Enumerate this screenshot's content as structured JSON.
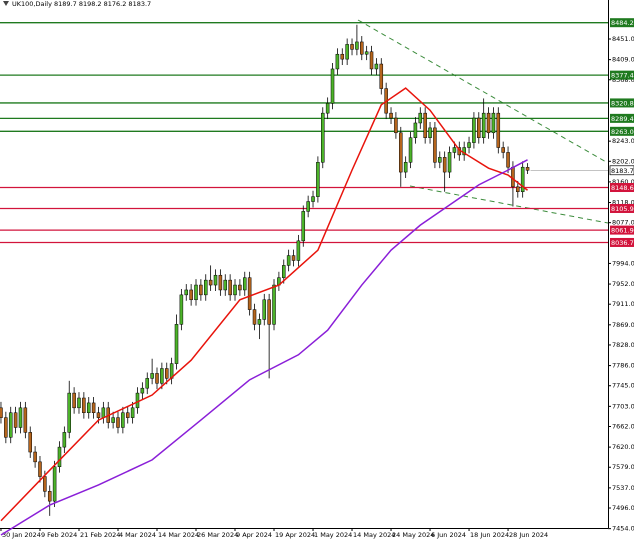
{
  "chart_data": {
    "type": "candlestick",
    "title": "UK100,Daily  8189.7 8198.2 8176.2 8183.7",
    "open": [
      7700,
      7680,
      7640,
      7690,
      7660,
      7700,
      7650,
      7610,
      7590,
      7560,
      7530,
      7510,
      7580,
      7620,
      7650,
      7730,
      7700,
      7720,
      7690,
      7710,
      7690,
      7680,
      7700,
      7670,
      7680,
      7660,
      7690,
      7680,
      7700,
      7730,
      7740,
      7760,
      7770,
      7750,
      7780,
      7760,
      7790,
      7870,
      7930,
      7940,
      7920,
      7950,
      7930,
      7960,
      7950,
      7970,
      7940,
      7960,
      7930,
      7950,
      7940,
      7965,
      7900,
      7870,
      7880,
      7920,
      7870,
      7950,
      7965,
      7990,
      8010,
      8000,
      8040,
      8100,
      8120,
      8130,
      8200,
      8300,
      8320,
      8390,
      8420,
      8410,
      8440,
      8430,
      8445,
      8420,
      8425,
      8390,
      8400,
      8350,
      8300,
      8290,
      8260,
      8180,
      8200,
      8250,
      8280,
      8300,
      8250,
      8270,
      8200,
      8210,
      8180,
      8220,
      8230,
      8215,
      8230,
      8240,
      8290,
      8250,
      8300,
      8260,
      8300,
      8230,
      8220,
      8190,
      8150,
      8140,
      8189.7
    ],
    "high": [
      7712,
      7692,
      7702,
      7702,
      7712,
      7712,
      7662,
      7622,
      7602,
      7572,
      7542,
      7592,
      7632,
      7662,
      7755,
      7742,
      7732,
      7732,
      7722,
      7722,
      7702,
      7712,
      7712,
      7692,
      7692,
      7702,
      7702,
      7712,
      7742,
      7752,
      7772,
      7800,
      7782,
      7792,
      7792,
      7802,
      7890,
      7942,
      7952,
      7952,
      7962,
      7962,
      7972,
      7990,
      7982,
      7982,
      7972,
      7972,
      7962,
      7962,
      7977,
      7977,
      7912,
      7892,
      7932,
      7932,
      7962,
      7977,
      8002,
      8022,
      8022,
      8052,
      8112,
      8132,
      8142,
      8212,
      8312,
      8332,
      8402,
      8432,
      8432,
      8452,
      8452,
      8480,
      8457,
      8437,
      8437,
      8412,
      8412,
      8362,
      8312,
      8302,
      8272,
      8212,
      8262,
      8292,
      8312,
      8312,
      8282,
      8282,
      8222,
      8222,
      8232,
      8242,
      8242,
      8242,
      8252,
      8302,
      8302,
      8330,
      8312,
      8312,
      8312,
      8242,
      8232,
      8202,
      8162,
      8202,
      8198.2
    ],
    "low": [
      7668,
      7628,
      7628,
      7648,
      7648,
      7638,
      7598,
      7578,
      7548,
      7518,
      7480,
      7498,
      7568,
      7608,
      7638,
      7688,
      7688,
      7678,
      7678,
      7678,
      7668,
      7668,
      7658,
      7658,
      7648,
      7648,
      7668,
      7668,
      7688,
      7718,
      7728,
      7748,
      7738,
      7738,
      7748,
      7748,
      7778,
      7858,
      7918,
      7908,
      7908,
      7918,
      7918,
      7938,
      7938,
      7928,
      7928,
      7918,
      7918,
      7928,
      7928,
      7888,
      7858,
      7840,
      7868,
      7760,
      7858,
      7938,
      7953,
      7978,
      7988,
      7988,
      8028,
      8088,
      8108,
      8118,
      8188,
      8288,
      8308,
      8378,
      8398,
      8398,
      8418,
      8418,
      8408,
      8408,
      8378,
      8378,
      8338,
      8288,
      8278,
      8248,
      8150,
      8168,
      8188,
      8238,
      8268,
      8238,
      8238,
      8188,
      8188,
      8140,
      8168,
      8208,
      8203,
      8203,
      8218,
      8228,
      8238,
      8238,
      8248,
      8248,
      8218,
      8208,
      8178,
      8110,
      8128,
      8128,
      8176.2
    ],
    "close": [
      7680,
      7640,
      7690,
      7660,
      7700,
      7650,
      7610,
      7590,
      7560,
      7530,
      7510,
      7580,
      7620,
      7650,
      7730,
      7700,
      7720,
      7690,
      7710,
      7690,
      7680,
      7700,
      7670,
      7680,
      7660,
      7690,
      7680,
      7700,
      7730,
      7740,
      7760,
      7770,
      7750,
      7780,
      7760,
      7790,
      7870,
      7930,
      7940,
      7920,
      7950,
      7930,
      7960,
      7950,
      7970,
      7940,
      7960,
      7930,
      7950,
      7940,
      7965,
      7900,
      7870,
      7880,
      7920,
      7870,
      7950,
      7965,
      7990,
      8010,
      8000,
      8040,
      8100,
      8120,
      8130,
      8200,
      8300,
      8320,
      8390,
      8420,
      8410,
      8440,
      8430,
      8445,
      8420,
      8425,
      8390,
      8400,
      8350,
      8300,
      8290,
      8260,
      8180,
      8200,
      8250,
      8280,
      8300,
      8250,
      8270,
      8200,
      8210,
      8180,
      8220,
      8230,
      8215,
      8230,
      8240,
      8290,
      8250,
      8300,
      8260,
      8300,
      8230,
      8220,
      8190,
      8150,
      8140,
      8190,
      8183.7
    ],
    "up_color": "#4cb32a",
    "down_color": "#b5651d",
    "series": [
      {
        "color": "#e8140c",
        "x": [
          0,
          10,
          20,
          31,
          39,
          49,
          57,
          65,
          72,
          78,
          83,
          88,
          94,
          100,
          104,
          108
        ],
        "values": [
          7470,
          7573,
          7675,
          7726,
          7797,
          7920,
          7950,
          8021,
          8184,
          8317,
          8351,
          8306,
          8225,
          8188,
          8174,
          8143
        ]
      },
      {
        "color": "#8a1fd8",
        "x": [
          0,
          10,
          20,
          31,
          41,
          51,
          61,
          67,
          74,
          80,
          86,
          92,
          98,
          104,
          108
        ],
        "values": [
          7441,
          7502,
          7543,
          7594,
          7675,
          7757,
          7808,
          7858,
          7950,
          8021,
          8072,
          8113,
          8154,
          8184,
          8205
        ]
      }
    ],
    "levels": [
      {
        "value": 8484.2,
        "color": "#1f7a1f"
      },
      {
        "value": 8377.4,
        "color": "#1f7a1f"
      },
      {
        "value": 8320.8,
        "color": "#1f7a1f"
      },
      {
        "value": 8289.4,
        "color": "#1f7a1f"
      },
      {
        "value": 8263,
        "label": "8263.0",
        "color": "#1f7a1f"
      },
      {
        "value": 8148.6,
        "color": "#d2143c"
      },
      {
        "value": 8105.9,
        "color": "#d2143c"
      },
      {
        "value": 8061.9,
        "color": "#d2143c"
      },
      {
        "value": 8036.7,
        "color": "#d2143c"
      }
    ],
    "xlim": [
      -0.2,
      124.5
    ],
    "ylim": [
      7455.3,
      8530.4
    ],
    "xticks": [
      {
        "value": 0,
        "label": "30 Jan 2024"
      },
      {
        "value": 8,
        "label": "9 Feb 2024"
      },
      {
        "value": 16,
        "label": "21 Feb 2024"
      },
      {
        "value": 24,
        "label": "4 Mar 2024"
      },
      {
        "value": 32,
        "label": "14 Mar 2024"
      },
      {
        "value": 40,
        "label": "26 Mar 2024"
      },
      {
        "value": 48,
        "label": "9 Apr 2024"
      },
      {
        "value": 56,
        "label": "19 Apr 2024"
      },
      {
        "value": 64,
        "label": "1 May 2024"
      },
      {
        "value": 72,
        "label": "14 May 2024"
      },
      {
        "value": 80,
        "label": "24 May 2024"
      },
      {
        "value": 88,
        "label": "6 Jun 2024"
      },
      {
        "value": 96,
        "label": "18 Jun 2024"
      },
      {
        "value": 104,
        "label": "28 Jun 2024"
      }
    ],
    "yticks": [
      {
        "value": 8451,
        "label": "8451.0"
      },
      {
        "value": 8409,
        "label": "8409.0"
      },
      {
        "value": 8368,
        "label": "8368.0"
      },
      {
        "value": 8243,
        "label": "8243.0"
      },
      {
        "value": 8202,
        "label": "8202.0"
      },
      {
        "value": 8160,
        "label": "8160.0"
      },
      {
        "value": 8118,
        "label": "8118.0"
      },
      {
        "value": 8077,
        "label": "8077.0"
      },
      {
        "value": 7994,
        "label": "7994.0"
      },
      {
        "value": 7952,
        "label": "7952.0"
      },
      {
        "value": 7911,
        "label": "7911.0"
      },
      {
        "value": 7869,
        "label": "7869.0"
      },
      {
        "value": 7828,
        "label": "7828.0"
      },
      {
        "value": 7786,
        "label": "7786.0"
      },
      {
        "value": 7745,
        "label": "7745.0"
      },
      {
        "value": 7703,
        "label": "7703.0"
      },
      {
        "value": 7662,
        "label": "7662.0"
      },
      {
        "value": 7620,
        "label": "7620.0"
      },
      {
        "value": 7579,
        "label": "7579.0"
      },
      {
        "value": 7537,
        "label": "7537.0"
      },
      {
        "value": 7496,
        "label": "7496.0"
      },
      {
        "value": 7454,
        "label": "7454.0"
      }
    ]
  }
}
